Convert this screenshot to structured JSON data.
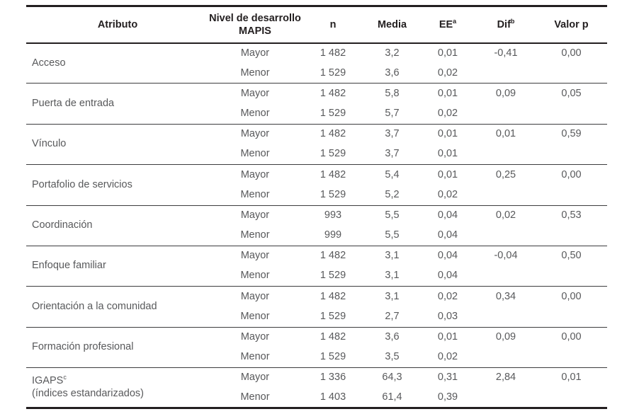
{
  "header": {
    "atributo": "Atributo",
    "nivel_line1": "Nivel de desarrollo",
    "nivel_line2": "MAPIS",
    "n": "n",
    "media": "Media",
    "ee": "EE",
    "ee_sup": "a",
    "dif": "Dif",
    "dif_sup": "b",
    "valor_p": "Valor p"
  },
  "groups": [
    {
      "attribute": "Acceso",
      "attribute_sup": "",
      "attribute_line2": "",
      "rows": [
        {
          "nivel": "Mayor",
          "n": "1 482",
          "media": "3,2",
          "ee": "0,01",
          "dif": "-0,41",
          "valor_p": "0,00"
        },
        {
          "nivel": "Menor",
          "n": "1 529",
          "media": "3,6",
          "ee": "0,02",
          "dif": "",
          "valor_p": ""
        }
      ]
    },
    {
      "attribute": "Puerta de entrada",
      "attribute_sup": "",
      "attribute_line2": "",
      "rows": [
        {
          "nivel": "Mayor",
          "n": "1 482",
          "media": "5,8",
          "ee": "0,01",
          "dif": "0,09",
          "valor_p": "0,05"
        },
        {
          "nivel": "Menor",
          "n": "1 529",
          "media": "5,7",
          "ee": "0,02",
          "dif": "",
          "valor_p": ""
        }
      ]
    },
    {
      "attribute": "Vínculo",
      "attribute_sup": "",
      "attribute_line2": "",
      "rows": [
        {
          "nivel": "Mayor",
          "n": "1 482",
          "media": "3,7",
          "ee": "0,01",
          "dif": "0,01",
          "valor_p": "0,59"
        },
        {
          "nivel": "Menor",
          "n": "1 529",
          "media": "3,7",
          "ee": "0,01",
          "dif": "",
          "valor_p": ""
        }
      ]
    },
    {
      "attribute": "Portafolio de servicios",
      "attribute_sup": "",
      "attribute_line2": "",
      "rows": [
        {
          "nivel": "Mayor",
          "n": "1 482",
          "media": "5,4",
          "ee": "0,01",
          "dif": "0,25",
          "valor_p": "0,00"
        },
        {
          "nivel": "Menor",
          "n": "1 529",
          "media": "5,2",
          "ee": "0,02",
          "dif": "",
          "valor_p": ""
        }
      ]
    },
    {
      "attribute": "Coordinación",
      "attribute_sup": "",
      "attribute_line2": "",
      "rows": [
        {
          "nivel": "Mayor",
          "n": "993",
          "media": "5,5",
          "ee": "0,04",
          "dif": "0,02",
          "valor_p": "0,53"
        },
        {
          "nivel": "Menor",
          "n": "999",
          "media": "5,5",
          "ee": "0,04",
          "dif": "",
          "valor_p": ""
        }
      ]
    },
    {
      "attribute": "Enfoque familiar",
      "attribute_sup": "",
      "attribute_line2": "",
      "rows": [
        {
          "nivel": "Mayor",
          "n": "1 482",
          "media": "3,1",
          "ee": "0,04",
          "dif": "-0,04",
          "valor_p": "0,50"
        },
        {
          "nivel": "Menor",
          "n": "1 529",
          "media": "3,1",
          "ee": "0,04",
          "dif": "",
          "valor_p": ""
        }
      ]
    },
    {
      "attribute": "Orientación a la comunidad",
      "attribute_sup": "",
      "attribute_line2": "",
      "rows": [
        {
          "nivel": "Mayor",
          "n": "1 482",
          "media": "3,1",
          "ee": "0,02",
          "dif": "0,34",
          "valor_p": "0,00"
        },
        {
          "nivel": "Menor",
          "n": "1 529",
          "media": "2,7",
          "ee": "0,03",
          "dif": "",
          "valor_p": ""
        }
      ]
    },
    {
      "attribute": "Formación profesional",
      "attribute_sup": "",
      "attribute_line2": "",
      "rows": [
        {
          "nivel": "Mayor",
          "n": "1 482",
          "media": "3,6",
          "ee": "0,01",
          "dif": "0,09",
          "valor_p": "0,00"
        },
        {
          "nivel": "Menor",
          "n": "1 529",
          "media": "3,5",
          "ee": "0,02",
          "dif": "",
          "valor_p": ""
        }
      ]
    },
    {
      "attribute": "IGAPS",
      "attribute_sup": "c",
      "attribute_line2": "(índices estandarizados)",
      "rows": [
        {
          "nivel": "Mayor",
          "n": "1 336",
          "media": "64,3",
          "ee": "0,31",
          "dif": "2,84",
          "valor_p": "0,01"
        },
        {
          "nivel": "Menor",
          "n": "1 403",
          "media": "61,4",
          "ee": "0,39",
          "dif": "",
          "valor_p": ""
        }
      ]
    }
  ],
  "colors": {
    "rule": "#231f20",
    "header_text": "#231f20",
    "body_text": "#58595b"
  }
}
